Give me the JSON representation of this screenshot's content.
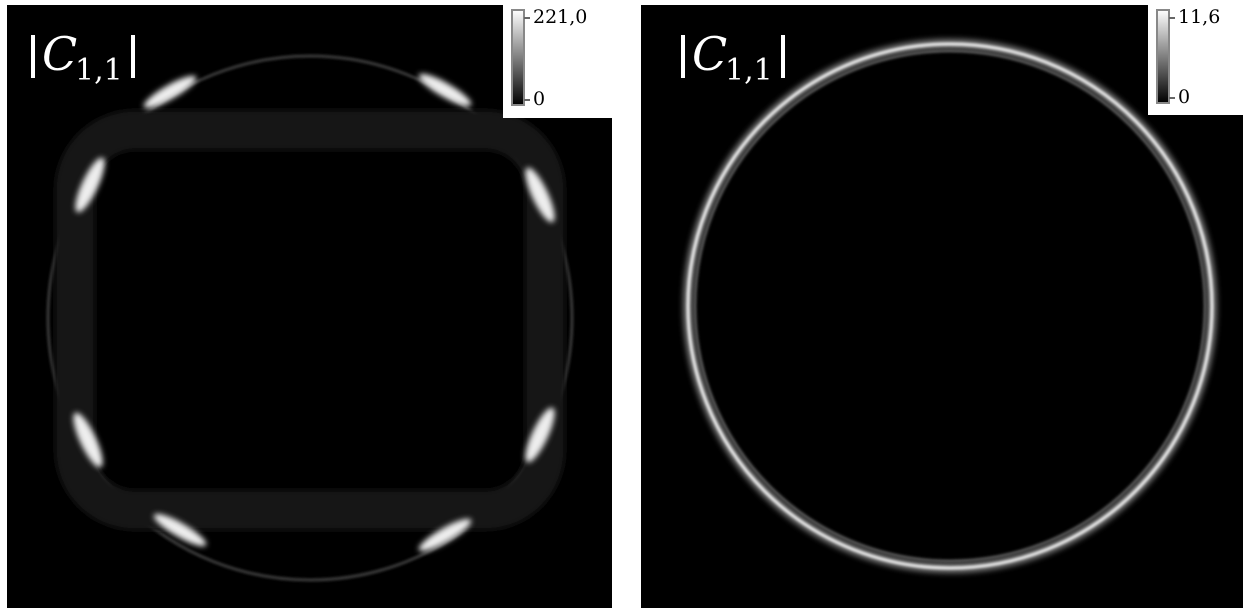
{
  "panels": [
    {
      "label": {
        "symbol": "C",
        "subscript": "1,1"
      },
      "colorbar": {
        "max": "221,0",
        "min": "0"
      }
    },
    {
      "label": {
        "symbol": "C",
        "subscript": "1,1"
      },
      "colorbar": {
        "max": "11,6",
        "min": "0"
      }
    }
  ]
}
